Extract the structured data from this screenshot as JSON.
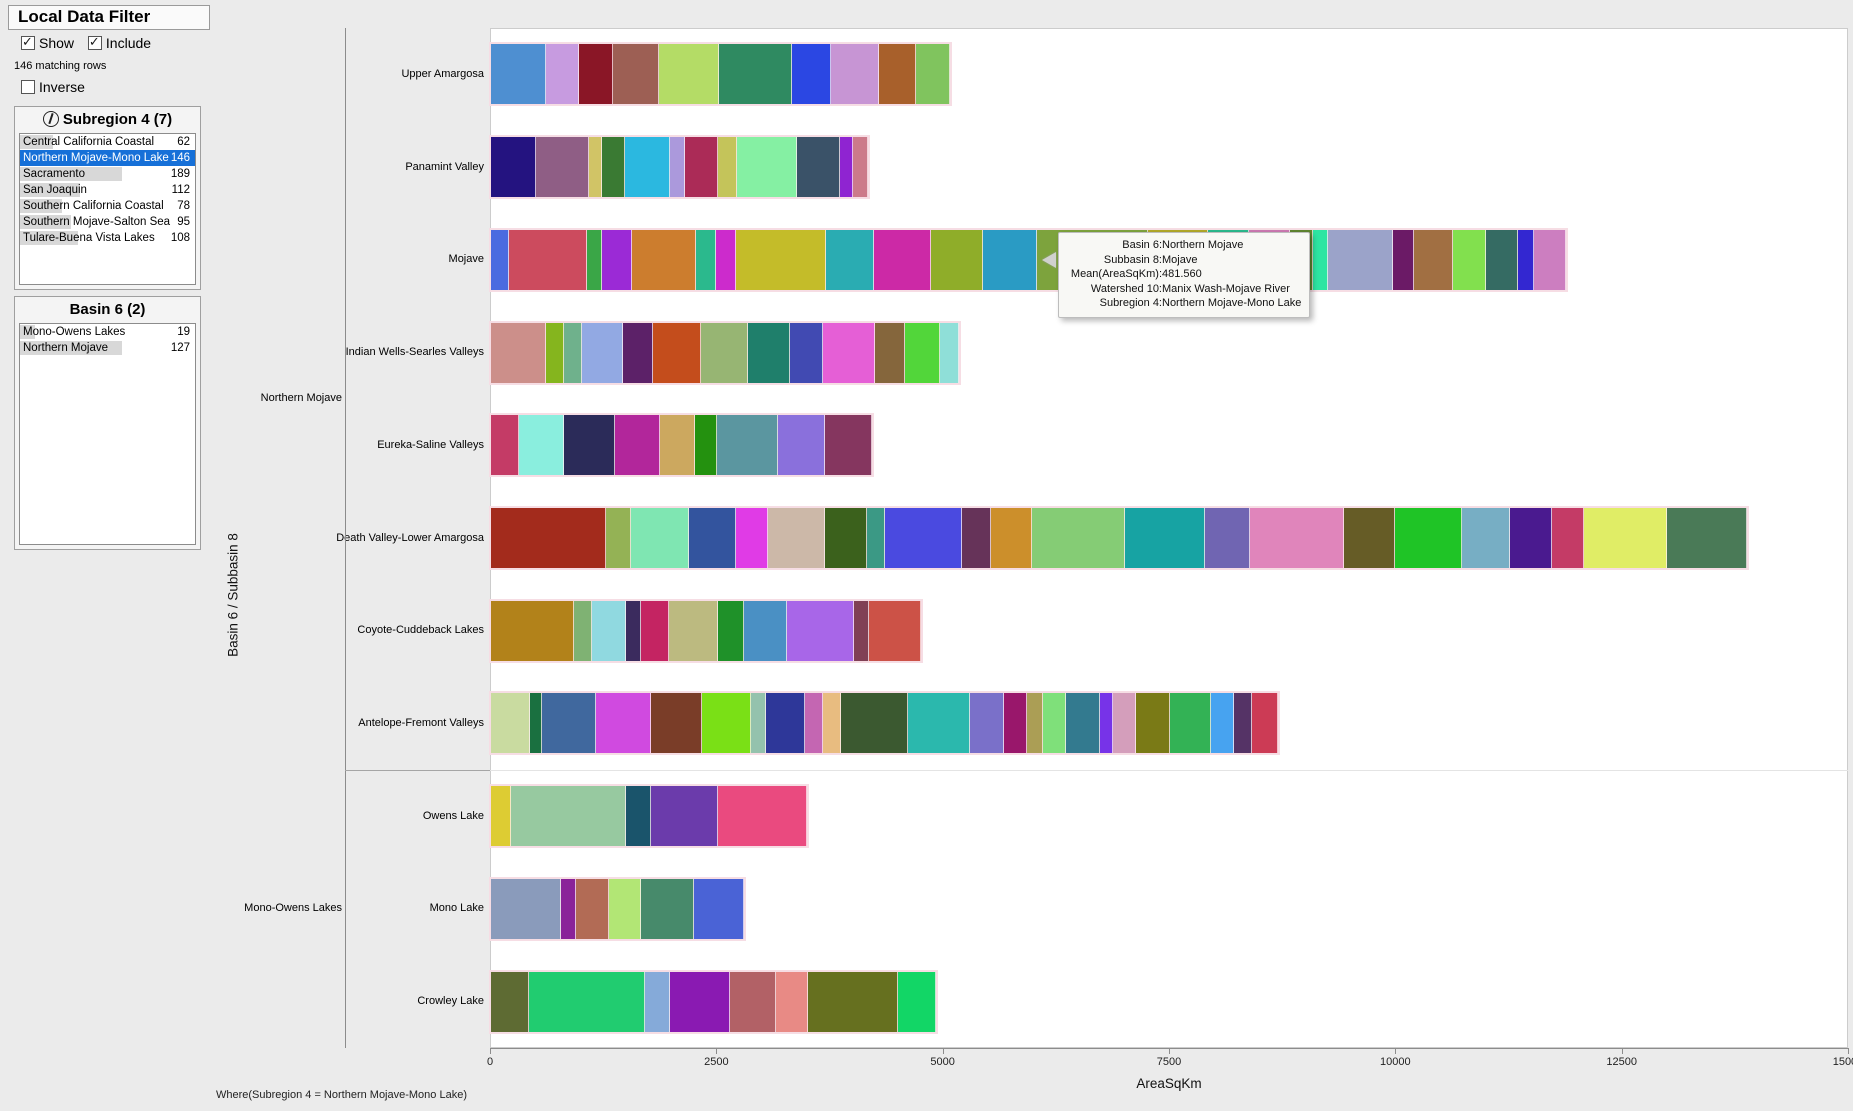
{
  "window": {
    "background": "#ebebeb",
    "plot_background": "#ffffff",
    "selection_color": "#1670d8"
  },
  "filter_panel": {
    "title": "Local Data Filter",
    "show_label": "Show",
    "show_checked": true,
    "include_label": "Include",
    "include_checked": true,
    "matching_rows": "146 matching rows",
    "inverse_label": "Inverse",
    "inverse_checked": false,
    "groups": [
      {
        "title": "Subregion 4 (7)",
        "icon": "circled-1-icon",
        "items": [
          {
            "label": "Central California Coastal",
            "count": 62,
            "selected": false
          },
          {
            "label": "Northern Mojave-Mono Lake",
            "count": 146,
            "selected": true
          },
          {
            "label": "Sacramento",
            "count": 189,
            "selected": false
          },
          {
            "label": "San Joaquin",
            "count": 112,
            "selected": false
          },
          {
            "label": "Southern California Coastal",
            "count": 78,
            "selected": false
          },
          {
            "label": "Southern Mojave-Salton Sea",
            "count": 95,
            "selected": false
          },
          {
            "label": "Tulare-Buena Vista Lakes",
            "count": 108,
            "selected": false
          }
        ]
      },
      {
        "title": "Basin 6 (2)",
        "icon": null,
        "items": [
          {
            "label": "Mono-Owens Lakes",
            "count": 19,
            "selected": false
          },
          {
            "label": "Northern Mojave",
            "count": 127,
            "selected": false
          }
        ]
      }
    ]
  },
  "tooltip": {
    "rows": [
      {
        "label": "Basin 6:",
        "value": "Northern Mojave"
      },
      {
        "label": "Subbasin 8:",
        "value": "Mojave"
      },
      {
        "label": "Mean(AreaSqKm):",
        "value": "481.560"
      },
      {
        "label": "Watershed 10:",
        "value": "Manix Wash-Mojave River"
      },
      {
        "label": "Subregion 4:",
        "value": "Northern Mojave-Mono Lake"
      }
    ]
  },
  "footer": "Where(Subregion 4 = Northern Mojave-Mono Lake)",
  "chart_data": {
    "type": "bar",
    "orientation": "horizontal",
    "stacked": true,
    "title": "",
    "xlabel": "AreaSqKm",
    "ylabel": "Basin 6 / Subbasin 8",
    "xlim": [
      0,
      15000
    ],
    "xticks": [
      0,
      2500,
      5000,
      7500,
      10000,
      12500,
      15000
    ],
    "grid": false,
    "groups": [
      {
        "label": "Northern Mojave",
        "rows": 8
      },
      {
        "label": "Mono-Owens Lakes",
        "rows": 3
      }
    ],
    "bars": [
      {
        "category": "Upper Amargosa",
        "group": "Northern Mojave",
        "total": 5070,
        "values": [
          610,
          365,
          375,
          510,
          655,
          810,
          430,
          530,
          410,
          375
        ],
        "colors": [
          "#4e8fd1",
          "#c79be0",
          "#8a1626",
          "#9d5f54",
          "#b4dc66",
          "#2f8a61",
          "#2b47e3",
          "#c795d4",
          "#a8602b",
          "#80c45e"
        ]
      },
      {
        "category": "Panamint Valley",
        "group": "Northern Mojave",
        "total": 4165,
        "values": [
          500,
          585,
          145,
          245,
          500,
          165,
          365,
          210,
          665,
          475,
          145,
          165
        ],
        "colors": [
          "#241380",
          "#8f5e85",
          "#d1c466",
          "#3a7a33",
          "#2bb8e0",
          "#ab99dc",
          "#ab2b57",
          "#c4c45a",
          "#85f0a3",
          "#3a5268",
          "#8f24d1",
          "#cc7a8a"
        ]
      },
      {
        "category": "Mojave",
        "group": "Northern Mojave",
        "total": 11880,
        "values": [
          200,
          865,
          165,
          330,
          710,
          220,
          220,
          995,
          530,
          630,
          565,
          600,
          1230,
          665,
          445,
          455,
          255,
          165,
          720,
          230,
          430,
          365,
          355,
          175,
          355
        ],
        "colors": [
          "#4a6be0",
          "#cc4b5e",
          "#3aa647",
          "#9b2ad6",
          "#cc7d2e",
          "#2bb98d",
          "#cc2bcc",
          "#c4bc29",
          "#2aacb2",
          "#cc29a6",
          "#8fad29",
          "#2a9bc4",
          "#7da33d",
          "#b2a829",
          "#2bb98d",
          "#cc7ab2",
          "#5f8530",
          "#2ee5a2",
          "#9ba3c9",
          "#6b1a66",
          "#a16f42",
          "#82e04e",
          "#356b63",
          "#3327d1",
          "#cc7ec0"
        ]
      },
      {
        "category": "Indian Wells-Searles Valleys",
        "group": "Northern Mojave",
        "total": 5180,
        "values": [
          610,
          200,
          200,
          445,
          330,
          540,
          510,
          465,
          365,
          575,
          330,
          385,
          220
        ],
        "colors": [
          "#cc8f8a",
          "#85b51e",
          "#6fb18c",
          "#92a9e3",
          "#5c2168",
          "#c44d1c",
          "#97b573",
          "#1f7f6b",
          "#414ab2",
          "#e55fd6",
          "#85663c",
          "#52d63a",
          "#8fdfd8"
        ]
      },
      {
        "category": "Eureka-Saline Valleys",
        "group": "Northern Mojave",
        "total": 4210,
        "values": [
          310,
          500,
          555,
          500,
          385,
          245,
          675,
          520,
          520
        ],
        "colors": [
          "#c43b66",
          "#8aeede",
          "#2b2b59",
          "#b2269b",
          "#cca85f",
          "#24910f",
          "#5b96a0",
          "#8a70dc",
          "#85365f"
        ]
      },
      {
        "category": "Death Valley-Lower Amargosa",
        "group": "Northern Mojave",
        "total": 13880,
        "values": [
          1275,
          275,
          640,
          520,
          345,
          640,
          455,
          200,
          850,
          320,
          455,
          1030,
          885,
          500,
          1030,
          565,
          740,
          530,
          465,
          355,
          920,
          885
        ],
        "colors": [
          "#a32b1c",
          "#94b255",
          "#7fe6b2",
          "#33549e",
          "#e03be6",
          "#ccb8a8",
          "#3b611c",
          "#3b9985",
          "#4a4ae0",
          "#663359",
          "#cc8f2b",
          "#85cc75",
          "#17a3a3",
          "#7065b2",
          "#e085bb",
          "#665c26",
          "#1fc426",
          "#77aec4",
          "#4a1a8f",
          "#c43b66",
          "#e0ed66",
          "#4a7a57"
        ]
      },
      {
        "category": "Coyote-Cuddeback Lakes",
        "group": "Northern Mojave",
        "total": 4760,
        "values": [
          920,
          200,
          375,
          165,
          310,
          540,
          290,
          465,
          740,
          175,
          575
        ],
        "colors": [
          "#b2821a",
          "#7fb273",
          "#90d9e0",
          "#3b2b5e",
          "#c42462",
          "#bcba80",
          "#1f9129",
          "#4a90c4",
          "#a866e8",
          "#804055",
          "#cc5247"
        ]
      },
      {
        "category": "Antelope-Fremont Valleys",
        "group": "Northern Mojave",
        "total": 8700,
        "values": [
          430,
          135,
          600,
          600,
          565,
          540,
          165,
          430,
          200,
          200,
          740,
          685,
          375,
          255,
          175,
          255,
          375,
          145,
          255,
          375,
          455,
          255,
          200,
          290
        ],
        "colors": [
          "#c9dba0",
          "#1a7040",
          "#40689e",
          "#d04ae0",
          "#7a3d28",
          "#7ae016",
          "#94c2ad",
          "#2e3799",
          "#c466b2",
          "#e8bc80",
          "#3b5930",
          "#2bb8ad",
          "#7a70c9",
          "#99176b",
          "#ab9e55",
          "#7fe07a",
          "#337a8f",
          "#7733e8",
          "#d49ebb",
          "#7a7a16",
          "#33b255",
          "#47a3f0",
          "#553366",
          "#cc3b55"
        ]
      },
      {
        "category": "Owens Lake",
        "group": "Mono-Owens Lakes",
        "total": 3500,
        "values": [
          220,
          1275,
          275,
          740,
          985
        ],
        "colors": [
          "#ddcc33",
          "#97c9a0",
          "#1a546b",
          "#6b3bab",
          "#ea4a7f"
        ]
      },
      {
        "category": "Mono Lake",
        "group": "Mono-Owens Lakes",
        "total": 2800,
        "values": [
          775,
          165,
          365,
          355,
          585,
          555
        ],
        "colors": [
          "#8a9bbb",
          "#8a2399",
          "#b26b55",
          "#b2e675",
          "#478a6b",
          "#4a63d6"
        ]
      },
      {
        "category": "Crowley Lake",
        "group": "Mono-Owens Lakes",
        "total": 4915,
        "values": [
          420,
          1285,
          275,
          665,
          500,
          355,
          995,
          420
        ],
        "colors": [
          "#5e6b33",
          "#21cc70",
          "#85aad9",
          "#8a1ab2",
          "#b26166",
          "#e88a85",
          "#66701f",
          "#12d666"
        ]
      }
    ]
  }
}
